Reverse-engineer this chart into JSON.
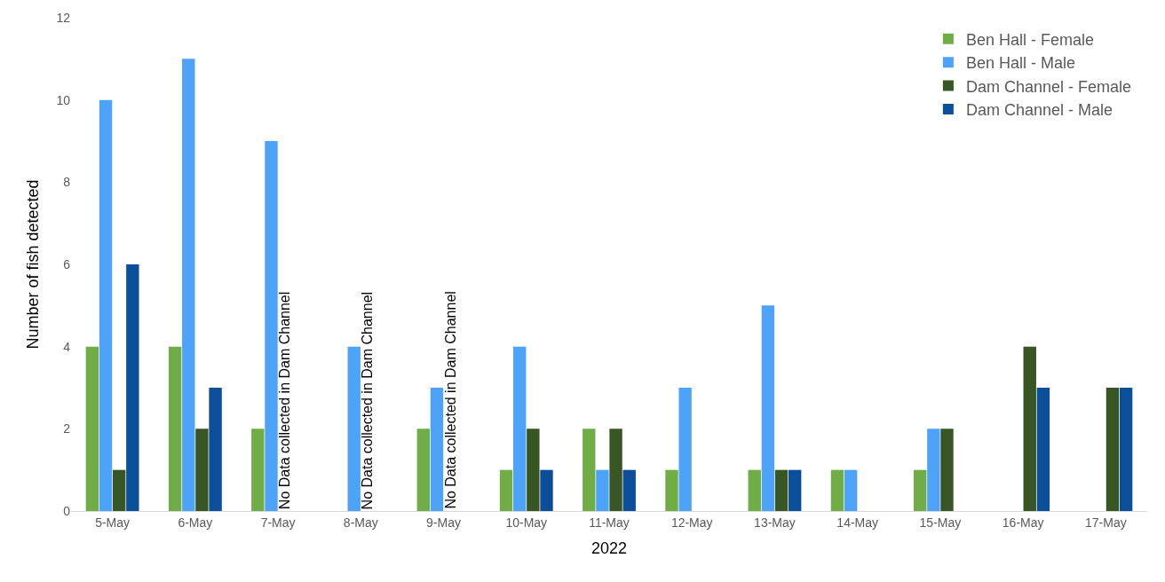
{
  "chart_data": {
    "type": "bar",
    "xlabel": "2022",
    "ylabel": "Number of fish detected",
    "categories": [
      "5-May",
      "6-May",
      "7-May",
      "8-May",
      "9-May",
      "10-May",
      "11-May",
      "12-May",
      "13-May",
      "14-May",
      "15-May",
      "16-May",
      "17-May"
    ],
    "series": [
      {
        "name": "Ben Hall - Female",
        "color": "#70ad47",
        "values": [
          4,
          4,
          2,
          0,
          2,
          1,
          2,
          1,
          1,
          1,
          1,
          0,
          0
        ]
      },
      {
        "name": "Ben Hall - Male",
        "color": "#4da3f7",
        "values": [
          10,
          11,
          9,
          4,
          3,
          4,
          1,
          3,
          5,
          1,
          2,
          0,
          0
        ]
      },
      {
        "name": "Dam Channel - Female",
        "color": "#375623",
        "values": [
          1,
          2,
          null,
          null,
          null,
          2,
          2,
          0,
          1,
          0,
          2,
          4,
          3
        ]
      },
      {
        "name": "Dam Channel - Male",
        "color": "#0b4f9a",
        "values": [
          6,
          3,
          null,
          null,
          null,
          1,
          1,
          0,
          1,
          0,
          0,
          3,
          3
        ]
      }
    ],
    "annotations": [
      {
        "text": "No Data collected in Dam Channel",
        "x": "7-May",
        "y": 0
      },
      {
        "text": "No Data collected in Dam Channel",
        "x": "8-May",
        "y": 0
      },
      {
        "text": "No Data collected in Dam Channel",
        "x": "9-May",
        "y": 0
      }
    ],
    "ylim": [
      0,
      12
    ],
    "yticks": [
      0,
      2,
      4,
      6,
      8,
      10,
      12
    ],
    "legend": "top right"
  }
}
